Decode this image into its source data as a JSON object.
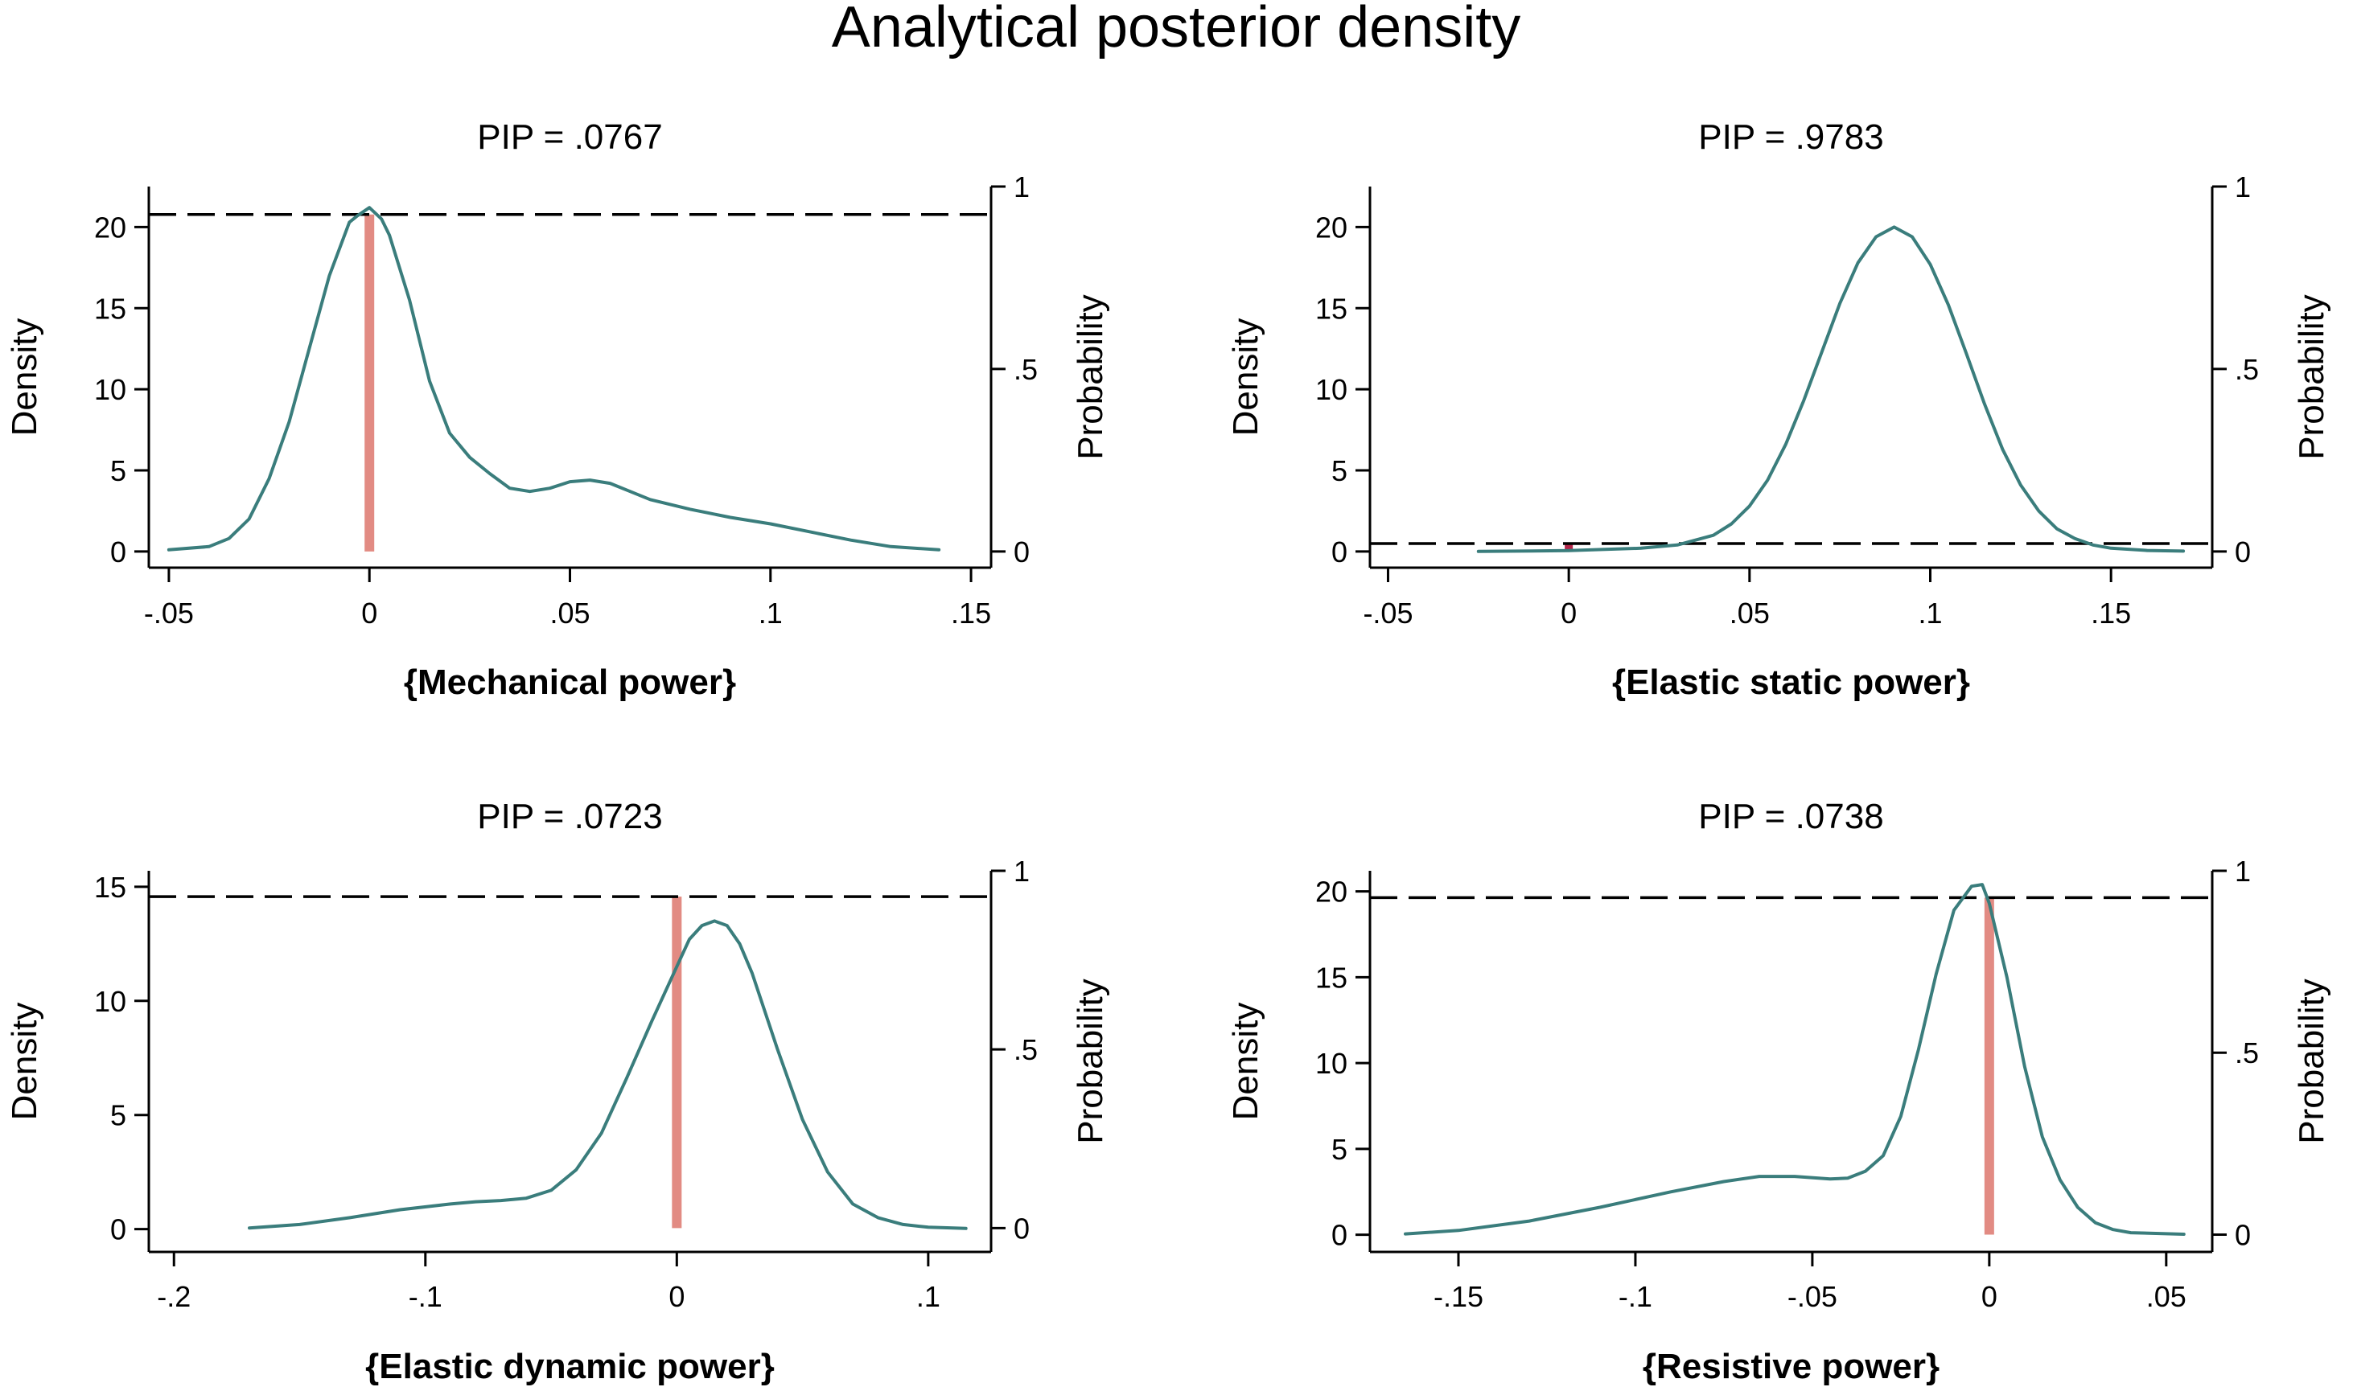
{
  "figure_title": "Analytical posterior density",
  "colors": {
    "density_line": "#3a7d7c",
    "probability_bar": "#e28b83",
    "dashed_line": "#000000",
    "small_bar": "#b5264b"
  },
  "chart_data": [
    {
      "type": "line",
      "title": "PIP = .0767",
      "xlabel": "{Mechanical power}",
      "ylabel": "Density",
      "y2label": "Probability",
      "xlim": [
        -0.055,
        0.155
      ],
      "ylim": [
        -1,
        22.5
      ],
      "y2lim": [
        -0.0444,
        1
      ],
      "xticks": [
        -0.05,
        0,
        0.05,
        0.1,
        0.15
      ],
      "xtick_labels": [
        "-.05",
        "0",
        ".05",
        ".1",
        ".15"
      ],
      "yticks": [
        0,
        5,
        10,
        15,
        20
      ],
      "ytick_labels": [
        "0",
        "5",
        "10",
        "15",
        "20"
      ],
      "y2ticks": [
        0,
        0.5,
        1
      ],
      "y2tick_labels": [
        "0",
        ".5",
        "1"
      ],
      "series": [
        {
          "x": [
            -0.05,
            -0.04,
            -0.035,
            -0.03,
            -0.025,
            -0.02,
            -0.015,
            -0.01,
            -0.005,
            -0.003,
            0,
            0.003,
            0.005,
            0.01,
            0.015,
            0.02,
            0.025,
            0.03,
            0.035,
            0.04,
            0.045,
            0.05,
            0.055,
            0.06,
            0.065,
            0.07,
            0.08,
            0.09,
            0.1,
            0.11,
            0.12,
            0.13,
            0.142
          ],
          "y": [
            0.1,
            0.3,
            0.8,
            2.0,
            4.5,
            8.0,
            12.5,
            17.0,
            20.3,
            20.7,
            21.2,
            20.5,
            19.5,
            15.5,
            10.5,
            7.3,
            5.8,
            4.8,
            3.9,
            3.7,
            3.9,
            4.3,
            4.4,
            4.2,
            3.7,
            3.2,
            2.6,
            2.1,
            1.7,
            1.2,
            0.7,
            0.3,
            0.1
          ]
        }
      ],
      "probability_bar": {
        "x": 0,
        "value": 0.9233
      },
      "dashed_line": 0.9233
    },
    {
      "type": "line",
      "title": "PIP = .9783",
      "xlabel": "{Elastic static power}",
      "ylabel": "Density",
      "y2label": "Probability",
      "xlim": [
        -0.055,
        0.178
      ],
      "ylim": [
        -1,
        22.5
      ],
      "y2lim": [
        -0.0444,
        1
      ],
      "xticks": [
        -0.05,
        0,
        0.05,
        0.1,
        0.15
      ],
      "xtick_labels": [
        "-.05",
        "0",
        ".05",
        ".1",
        ".15"
      ],
      "yticks": [
        0,
        5,
        10,
        15,
        20
      ],
      "ytick_labels": [
        "0",
        "5",
        "10",
        "15",
        "20"
      ],
      "y2ticks": [
        0,
        0.5,
        1
      ],
      "y2tick_labels": [
        "0",
        ".5",
        "1"
      ],
      "series": [
        {
          "x": [
            -0.025,
            0,
            0.02,
            0.03,
            0.04,
            0.045,
            0.05,
            0.055,
            0.06,
            0.065,
            0.07,
            0.075,
            0.08,
            0.085,
            0.09,
            0.095,
            0.1,
            0.105,
            0.11,
            0.115,
            0.12,
            0.125,
            0.13,
            0.135,
            0.14,
            0.145,
            0.15,
            0.16,
            0.17
          ],
          "y": [
            0.0,
            0.05,
            0.2,
            0.4,
            1.0,
            1.7,
            2.8,
            4.4,
            6.6,
            9.3,
            12.3,
            15.3,
            17.8,
            19.4,
            20.0,
            19.4,
            17.7,
            15.2,
            12.2,
            9.1,
            6.3,
            4.1,
            2.5,
            1.4,
            0.8,
            0.4,
            0.2,
            0.06,
            0.02
          ]
        }
      ],
      "probability_bar": {
        "x": 0,
        "value": 0.0217
      },
      "dashed_line": 0.0217
    },
    {
      "type": "line",
      "title": "PIP = .0723",
      "xlabel": "{Elastic dynamic power}",
      "ylabel": "Density",
      "y2label": "Probability",
      "xlim": [
        -0.21,
        0.125
      ],
      "ylim": [
        -1,
        15.7
      ],
      "y2lim": [
        -0.0667,
        1
      ],
      "xticks": [
        -0.2,
        -0.1,
        0,
        0.1
      ],
      "xtick_labels": [
        "-.2",
        "-.1",
        "0",
        ".1"
      ],
      "yticks": [
        0,
        5,
        10,
        15
      ],
      "ytick_labels": [
        "0",
        "5",
        "10",
        "15"
      ],
      "y2ticks": [
        0,
        0.5,
        1
      ],
      "y2tick_labels": [
        "0",
        ".5",
        "1"
      ],
      "series": [
        {
          "x": [
            -0.17,
            -0.15,
            -0.13,
            -0.11,
            -0.09,
            -0.08,
            -0.07,
            -0.06,
            -0.05,
            -0.04,
            -0.03,
            -0.02,
            -0.01,
            0,
            0.005,
            0.01,
            0.015,
            0.02,
            0.025,
            0.03,
            0.04,
            0.05,
            0.06,
            0.07,
            0.08,
            0.09,
            0.1,
            0.115
          ],
          "y": [
            0.05,
            0.2,
            0.5,
            0.85,
            1.1,
            1.2,
            1.25,
            1.35,
            1.7,
            2.6,
            4.2,
            6.6,
            9.1,
            11.5,
            12.7,
            13.3,
            13.5,
            13.3,
            12.5,
            11.2,
            7.9,
            4.8,
            2.5,
            1.1,
            0.5,
            0.2,
            0.08,
            0.03
          ]
        }
      ],
      "probability_bar": {
        "x": 0,
        "value": 0.9277
      },
      "dashed_line": 0.9277
    },
    {
      "type": "line",
      "title": "PIP = .0738",
      "xlabel": "{Resistive power}",
      "ylabel": "Density",
      "y2label": "Probability",
      "xlim": [
        -0.175,
        0.063
      ],
      "ylim": [
        -1,
        21.2
      ],
      "y2lim": [
        -0.0476,
        1
      ],
      "xticks": [
        -0.15,
        -0.1,
        -0.05,
        0,
        0.05
      ],
      "xtick_labels": [
        "-.15",
        "-.1",
        "-.05",
        "0",
        ".05"
      ],
      "yticks": [
        0,
        5,
        10,
        15,
        20
      ],
      "ytick_labels": [
        "0",
        "5",
        "10",
        "15",
        "20"
      ],
      "y2ticks": [
        0,
        0.5,
        1
      ],
      "y2tick_labels": [
        "0",
        ".5",
        "1"
      ],
      "series": [
        {
          "x": [
            -0.165,
            -0.15,
            -0.13,
            -0.11,
            -0.09,
            -0.075,
            -0.065,
            -0.055,
            -0.045,
            -0.04,
            -0.035,
            -0.03,
            -0.025,
            -0.02,
            -0.015,
            -0.01,
            -0.005,
            -0.002,
            0,
            0.005,
            0.01,
            0.015,
            0.02,
            0.025,
            0.03,
            0.035,
            0.04,
            0.055
          ],
          "y": [
            0.05,
            0.25,
            0.8,
            1.6,
            2.5,
            3.1,
            3.4,
            3.4,
            3.25,
            3.3,
            3.7,
            4.6,
            6.9,
            10.8,
            15.2,
            18.9,
            20.3,
            20.4,
            19.3,
            15.0,
            9.8,
            5.7,
            3.2,
            1.6,
            0.7,
            0.3,
            0.12,
            0.03
          ]
        }
      ],
      "probability_bar": {
        "x": 0,
        "value": 0.9262
      },
      "dashed_line": 0.9262
    }
  ]
}
